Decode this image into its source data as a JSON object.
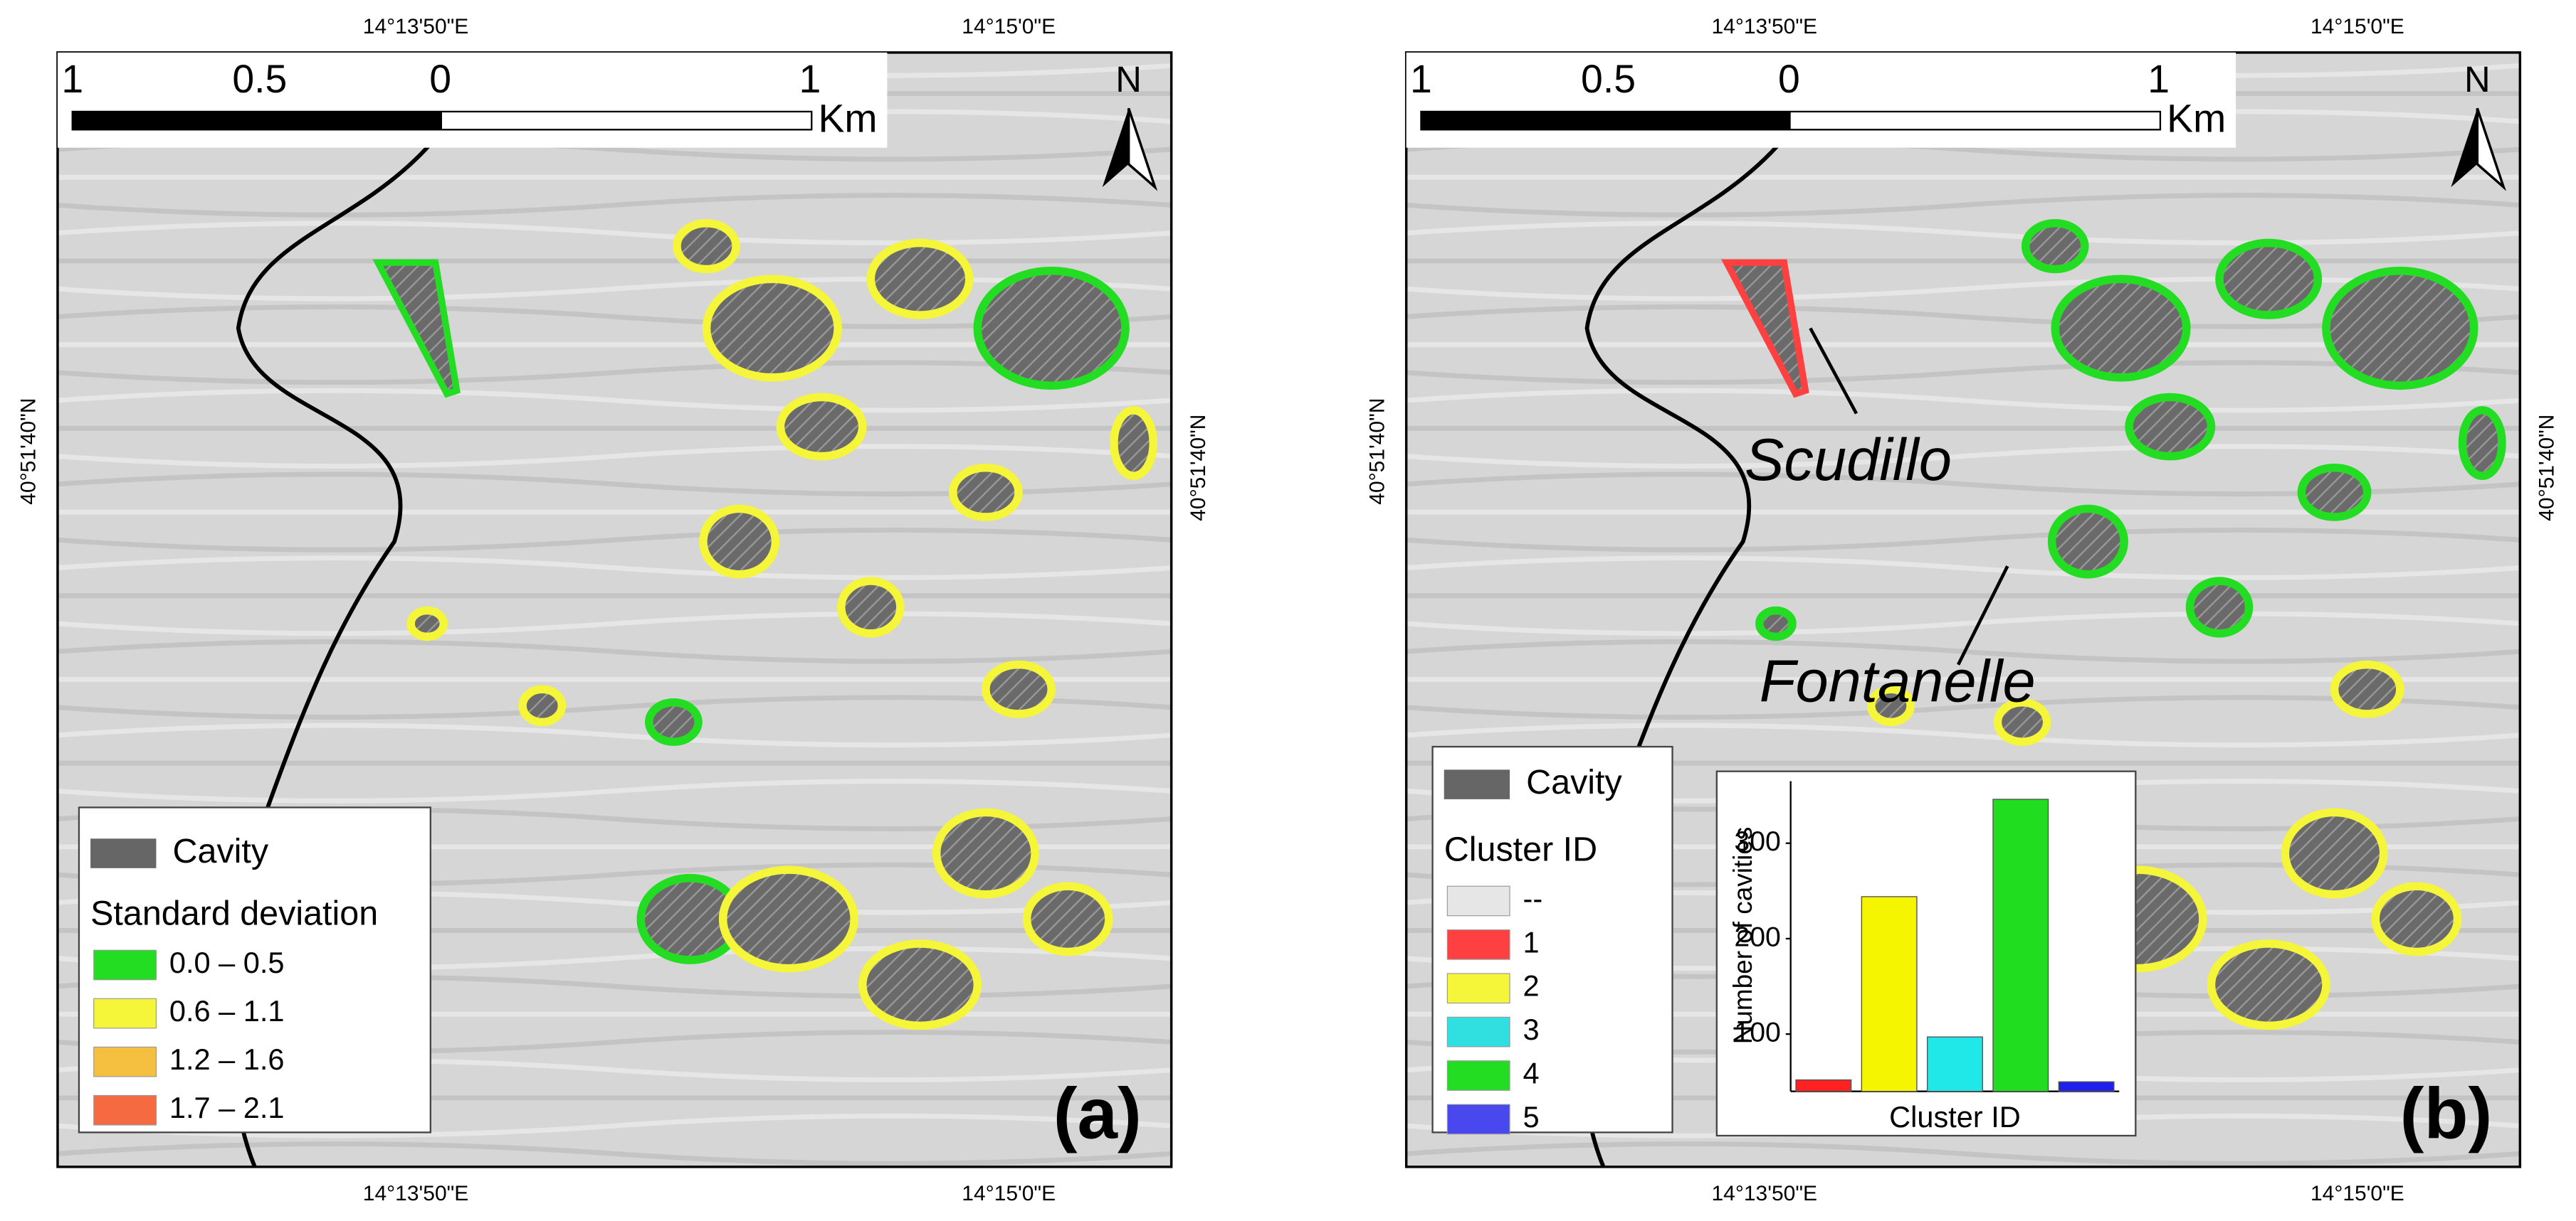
{
  "panels": [
    {
      "coords": {
        "lon_top": [
          "14°13'50\"E",
          "14°15'0\"E"
        ],
        "lon_bottom": [
          "14°13'50\"E",
          "14°15'0\"E"
        ],
        "lat_left": "40°51'40\"N",
        "lat_right": "40°51'40\"N"
      },
      "scale_bar": {
        "labels": [
          "1",
          "0.5",
          "0",
          "1"
        ],
        "unit": "Km"
      },
      "north": "N",
      "legend": {
        "cavity": "Cavity",
        "title": "Standard deviation",
        "items": [
          {
            "label": "0.0 – 0.5",
            "color": "#22dd22"
          },
          {
            "label": "0.6 – 1.1",
            "color": "#f5f53a"
          },
          {
            "label": "1.2 – 1.6",
            "color": "#f5c040"
          },
          {
            "label": "1.7 – 2.1",
            "color": "#f56a40"
          }
        ]
      },
      "panel_label": "(a)"
    },
    {
      "coords": {
        "lon_top": [
          "14°13'50\"E",
          "14°15'0\"E"
        ],
        "lon_bottom": [
          "14°13'50\"E",
          "14°15'0\"E"
        ],
        "lat_left": "40°51'40\"N",
        "lat_right": "40°51'40\"N"
      },
      "scale_bar": {
        "labels": [
          "1",
          "0.5",
          "0",
          "1"
        ],
        "unit": "Km"
      },
      "north": "N",
      "legend": {
        "cavity": "Cavity",
        "title": "Cluster ID",
        "items": [
          {
            "label": "--",
            "color": "#e6e6e6"
          },
          {
            "label": "1",
            "color": "#ff4040"
          },
          {
            "label": "2",
            "color": "#f5f53a"
          },
          {
            "label": "3",
            "color": "#30e0e0"
          },
          {
            "label": "4",
            "color": "#22dd22"
          },
          {
            "label": "5",
            "color": "#4848ee"
          }
        ]
      },
      "annotations": [
        "Scudillo",
        "Fontanelle"
      ],
      "panel_label": "(b)"
    }
  ],
  "chart_data": {
    "type": "bar",
    "x_label": "Cluster ID",
    "y_label": "Number of cavities",
    "values": [
      52,
      244,
      97,
      346,
      50
    ],
    "colors": [
      "#ff2020",
      "#f5f500",
      "#20e8e8",
      "#20dd20",
      "#2020ee"
    ],
    "ylim": [
      40,
      365
    ],
    "yticks": [
      100,
      200,
      300
    ]
  }
}
